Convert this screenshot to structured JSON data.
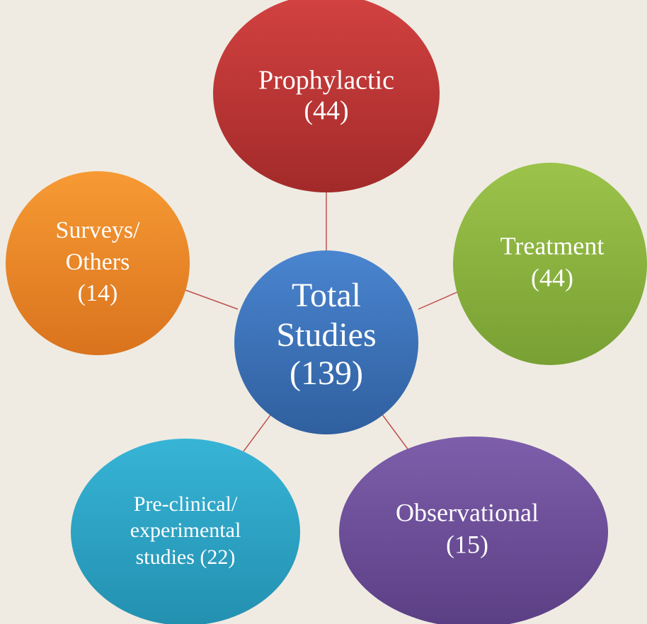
{
  "center": {
    "lines": [
      "Total",
      "Studies",
      "(139)"
    ]
  },
  "nodes": [
    {
      "lines": [
        "Prophylactic",
        "(44)"
      ]
    },
    {
      "lines": [
        "Treatment",
        "(44)"
      ]
    },
    {
      "lines": [
        "Observational",
        "(15)"
      ]
    },
    {
      "lines": [
        "Pre-clinical/",
        "experimental",
        "studies (22)"
      ]
    },
    {
      "lines": [
        "Surveys/",
        "Others",
        "(14)"
      ]
    }
  ]
}
